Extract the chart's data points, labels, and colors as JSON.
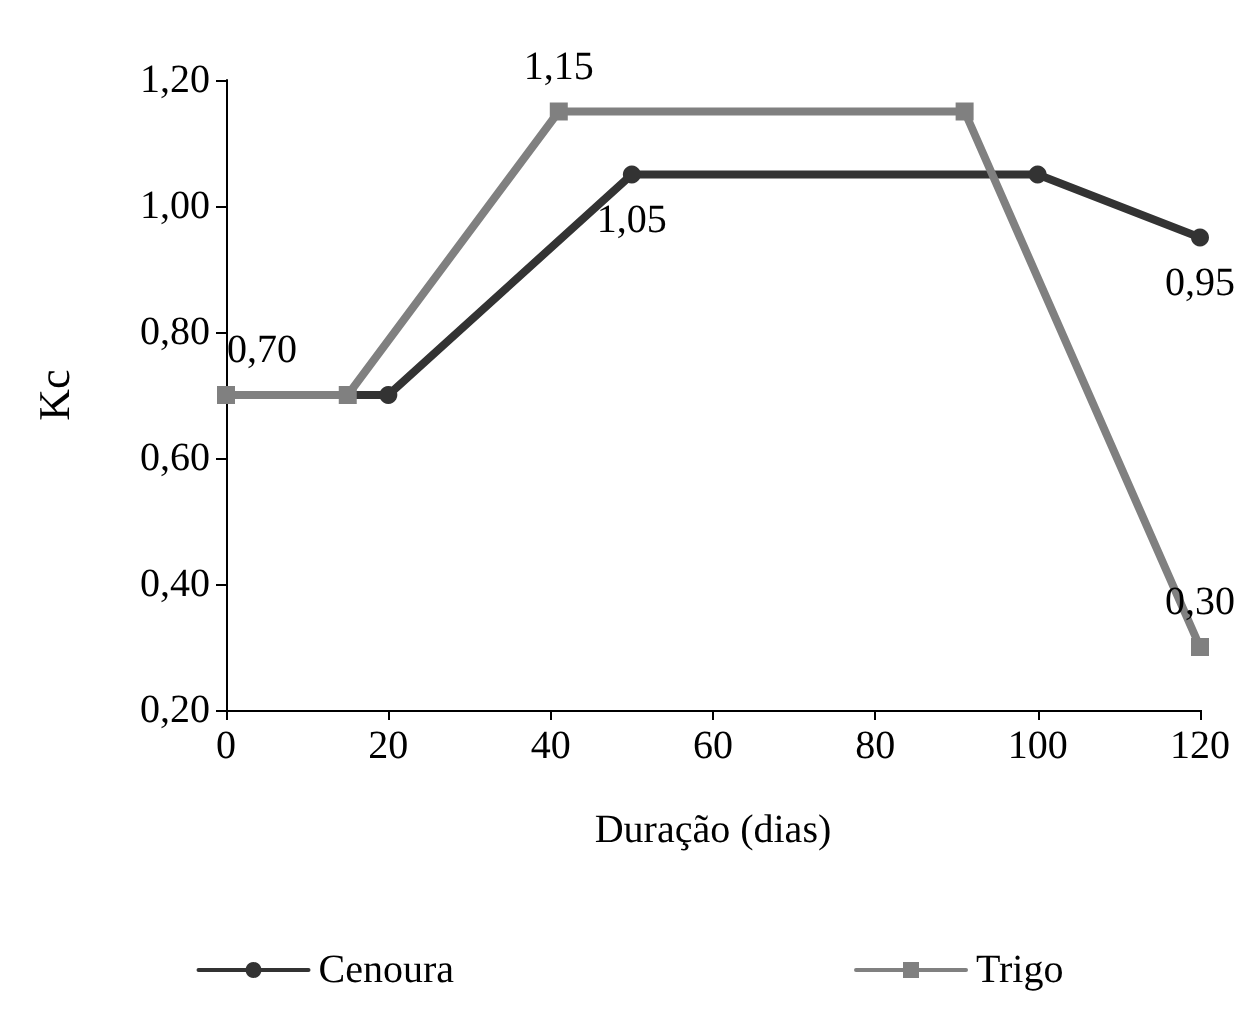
{
  "chart_data": {
    "type": "line",
    "xlabel": "Duração (dias)",
    "ylabel": "Kc",
    "xlim": [
      0,
      120
    ],
    "xticks": [
      0,
      20,
      40,
      60,
      80,
      100,
      120
    ],
    "ylim": [
      0.2,
      1.2
    ],
    "yticks": [
      {
        "value": 0.2,
        "label": "0,20"
      },
      {
        "value": 0.4,
        "label": "0,40"
      },
      {
        "value": 0.6,
        "label": "0,60"
      },
      {
        "value": 0.8,
        "label": "0,80"
      },
      {
        "value": 1.0,
        "label": "1,00"
      },
      {
        "value": 1.2,
        "label": "1,20"
      }
    ],
    "grid": false,
    "legend": "bottom",
    "series": [
      {
        "name": "Cenoura",
        "color": "#333333",
        "marker": "circle",
        "x": [
          0,
          20,
          50,
          100,
          120
        ],
        "values": [
          0.7,
          0.7,
          1.05,
          1.05,
          0.95
        ],
        "value_labels": [
          null,
          null,
          "1,05",
          null,
          "0,95"
        ]
      },
      {
        "name": "Trigo",
        "color": "#808080",
        "marker": "square",
        "x": [
          0,
          15,
          41,
          91,
          120
        ],
        "values": [
          0.7,
          0.7,
          1.15,
          1.15,
          0.3
        ],
        "value_labels": [
          "0,70",
          null,
          "1,15",
          null,
          "0,30"
        ]
      }
    ]
  }
}
